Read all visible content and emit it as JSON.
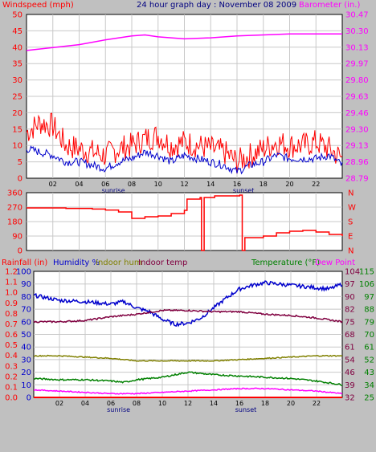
{
  "chart_data": [
    {
      "type": "line",
      "title": "24 hour graph day : November 08 2009",
      "left_axis_label": "Windspeed (mph)",
      "right_axis_label": "Barometer (in.)",
      "x_ticks": [
        "02",
        "04",
        "06",
        "08",
        "10",
        "12",
        "14",
        "16",
        "18",
        "20",
        "22"
      ],
      "x_notes": [
        {
          "label": "sunrise",
          "hour": 6.6
        },
        {
          "label": "sunset",
          "hour": 16.5
        }
      ],
      "xlim": [
        0,
        24
      ],
      "left_ylim": [
        0,
        50
      ],
      "left_ticks": [
        "0",
        "5",
        "10",
        "15",
        "20",
        "25",
        "30",
        "35",
        "40",
        "45",
        "50"
      ],
      "right_ylim": [
        28.79,
        30.47
      ],
      "right_ticks": [
        "28.79",
        "28.96",
        "29.13",
        "29.30",
        "29.46",
        "29.63",
        "29.80",
        "29.97",
        "30.13",
        "30.30",
        "30.47"
      ],
      "grid": true,
      "colors": {
        "wind_gust": "#ff0000",
        "wind_avg": "#0000cc",
        "barometer": "#ff00ff",
        "left_axis": "#ff0000",
        "right_axis": "#ff00ff",
        "title": "#000080"
      },
      "series": [
        {
          "key": "wind_gust",
          "axis": "left",
          "x": [
            0,
            1,
            2,
            3,
            4,
            5,
            6,
            7,
            8,
            9,
            10,
            11,
            12,
            13,
            14,
            15,
            16,
            17,
            18,
            19,
            20,
            21,
            22,
            23,
            24
          ],
          "y": [
            14,
            17,
            16,
            10,
            9,
            8,
            7,
            9,
            10,
            12,
            13,
            10,
            11,
            10,
            9,
            8,
            5,
            7,
            9,
            11,
            10,
            10,
            11,
            9,
            6
          ]
        },
        {
          "key": "wind_avg",
          "axis": "left",
          "x": [
            0,
            1,
            2,
            3,
            4,
            5,
            6,
            7,
            8,
            9,
            10,
            11,
            12,
            13,
            14,
            15,
            16,
            17,
            18,
            19,
            20,
            21,
            22,
            23,
            24
          ],
          "y": [
            9,
            8,
            7,
            5,
            5,
            4,
            3,
            5,
            6,
            8,
            7,
            5,
            7,
            6,
            5,
            4,
            2,
            4,
            5,
            7,
            6,
            6,
            6,
            7,
            4
          ]
        },
        {
          "key": "barometer",
          "axis": "right",
          "x": [
            0,
            2,
            4,
            6,
            8,
            9,
            10,
            12,
            14,
            16,
            18,
            20,
            22,
            24
          ],
          "y": [
            30.1,
            30.13,
            30.16,
            30.21,
            30.25,
            30.26,
            30.24,
            30.22,
            30.23,
            30.25,
            30.26,
            30.27,
            30.27,
            30.27
          ]
        }
      ]
    },
    {
      "type": "line",
      "left_ylim": [
        0,
        360
      ],
      "left_ticks": [
        "0",
        "90",
        "180",
        "270",
        "360"
      ],
      "right_ticks": [
        "N",
        "E",
        "S",
        "W",
        "N"
      ],
      "xlim": [
        0,
        24
      ],
      "colors": {
        "wind_dir": "#ff0000",
        "left_axis": "#ff0000",
        "right_axis": "#ff0000"
      },
      "series": [
        {
          "key": "wind_dir",
          "axis": "left",
          "x": [
            0,
            3,
            5,
            6,
            7,
            8,
            9,
            10,
            11,
            12,
            12.2,
            13.2,
            13.3,
            13.5,
            14.3,
            16.2,
            16.4,
            16.6,
            18,
            19,
            20,
            21,
            22,
            23,
            24
          ],
          "y": [
            265,
            262,
            258,
            252,
            240,
            200,
            210,
            215,
            230,
            250,
            320,
            330,
            0,
            330,
            340,
            345,
            0,
            80,
            90,
            110,
            120,
            125,
            115,
            100,
            90
          ]
        }
      ]
    },
    {
      "type": "line",
      "title_parts": [
        "Rainfall (in)",
        "Humidity %",
        "Indoor hum",
        "Indoor temp",
        "Temperature (°F)",
        "Dew Point"
      ],
      "rain_ticks": [
        "0.0",
        "0.1",
        "0.2",
        "0.3",
        "0.4",
        "0.5",
        "0.6",
        "0.7",
        "0.8",
        "0.9",
        "1.0",
        "1.1",
        "1.2"
      ],
      "hum_ticks": [
        "0",
        "10",
        "20",
        "30",
        "40",
        "50",
        "60",
        "70",
        "80",
        "90",
        "100"
      ],
      "temp_ticks_a": [
        "25",
        "34",
        "43",
        "52",
        "61",
        "70",
        "79",
        "88",
        "97",
        "106",
        "115"
      ],
      "temp_ticks_b": [
        "32",
        "39",
        "46",
        "54",
        "61",
        "68",
        "75",
        "82",
        "90",
        "97",
        "104"
      ],
      "x_ticks": [
        "02",
        "04",
        "06",
        "08",
        "10",
        "12",
        "14",
        "16",
        "18",
        "20",
        "22"
      ],
      "x_notes": [
        {
          "label": "sunrise",
          "hour": 6.6
        },
        {
          "label": "sunset",
          "hour": 16.5
        }
      ],
      "xlim": [
        0,
        24
      ],
      "hum_ylim": [
        0,
        100
      ],
      "colors": {
        "rain": "#ff0000",
        "humidity": "#0000cc",
        "indoor_hum": "#808000",
        "indoor_temp": "#800040",
        "temperature": "#008000",
        "dew_point": "#ff00ff"
      },
      "series": [
        {
          "key": "humidity",
          "x": [
            0,
            2,
            4,
            6,
            7,
            8,
            9,
            10,
            11,
            12,
            13,
            14,
            15,
            16,
            17,
            18,
            19,
            20,
            21,
            22,
            23,
            24
          ],
          "y": [
            81,
            77,
            76,
            74,
            76,
            71,
            68,
            62,
            58,
            59,
            63,
            71,
            79,
            86,
            89,
            91,
            90,
            89,
            88,
            87,
            86,
            90
          ]
        },
        {
          "key": "indoor_temp",
          "x": [
            0,
            2,
            4,
            6,
            8,
            10,
            12,
            14,
            16,
            18,
            20,
            22,
            24
          ],
          "y": [
            60,
            60,
            61,
            64,
            66,
            69,
            69,
            68,
            68,
            66,
            65,
            63,
            60
          ]
        },
        {
          "key": "indoor_hum",
          "x": [
            0,
            2,
            4,
            6,
            7,
            8,
            10,
            12,
            14,
            16,
            18,
            20,
            22,
            24
          ],
          "y": [
            33,
            33,
            32,
            31,
            30,
            29,
            29,
            29,
            29,
            30,
            31,
            32,
            33,
            33
          ]
        },
        {
          "key": "temperature",
          "x": [
            0,
            2,
            4,
            6,
            7,
            8,
            10,
            12,
            14,
            16,
            18,
            20,
            22,
            24
          ],
          "y": [
            15,
            14,
            14,
            13,
            12,
            14,
            16,
            20,
            18,
            17,
            16,
            15,
            13,
            10
          ]
        },
        {
          "key": "dew_point",
          "x": [
            0,
            2,
            4,
            6,
            8,
            10,
            12,
            14,
            16,
            18,
            20,
            22,
            24
          ],
          "y": [
            6,
            5,
            4,
            3,
            3,
            4,
            5,
            6,
            7,
            7,
            6,
            5,
            3
          ]
        },
        {
          "key": "rain",
          "x": [
            0,
            24
          ],
          "y": [
            0,
            0
          ]
        }
      ]
    }
  ]
}
